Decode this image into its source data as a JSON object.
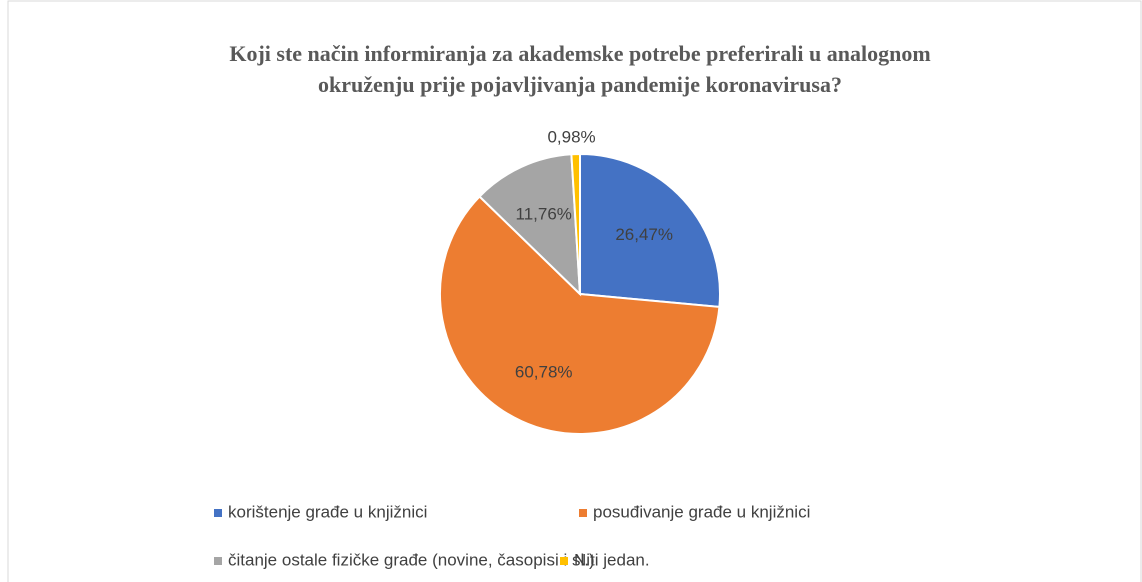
{
  "chart_data": {
    "type": "pie",
    "title": "Koji ste način informiranja za akademske potrebe preferirali u analognom\nokruženju prije pojavljivanja pandemije koronavirusa?",
    "categories": [
      "korištenje građe u knjižnici",
      "posuđivanje građe u knjižnici",
      "čitanje ostale fizičke građe (novine, časopisi i sl.)",
      "Niti jedan."
    ],
    "values": [
      26.47,
      60.78,
      11.76,
      0.98
    ],
    "value_labels": [
      "26,47%",
      "60,78%",
      "11,76%",
      "0,98%"
    ],
    "colors": [
      "#4472c4",
      "#ed7d31",
      "#a5a5a5",
      "#ffc000"
    ],
    "legend": "bottom"
  }
}
